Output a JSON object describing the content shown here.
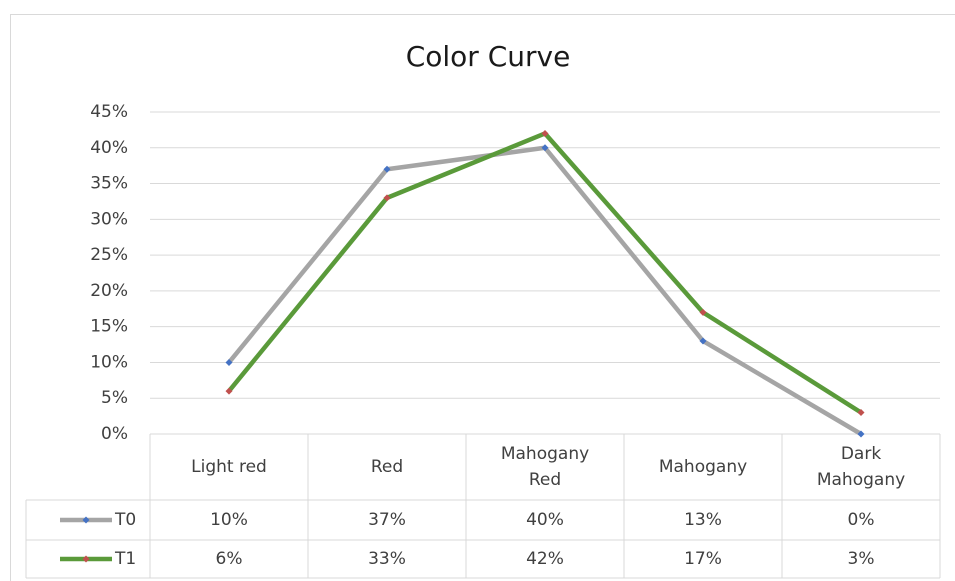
{
  "chart_data": {
    "type": "line",
    "title": "Color Curve",
    "categories": [
      "Light red",
      "Red",
      "Mahogany Red",
      "Mahogany",
      "Dark Mahogany"
    ],
    "series": [
      {
        "name": "T0",
        "color": "#a5a5a5",
        "marker_color": "#4472c4",
        "values": [
          10,
          37,
          40,
          13,
          0
        ],
        "value_labels": [
          "10%",
          "37%",
          "40%",
          "13%",
          "0%"
        ]
      },
      {
        "name": "T1",
        "color": "#5a9a3a",
        "marker_color": "#c0504d",
        "values": [
          6,
          33,
          42,
          17,
          3
        ],
        "value_labels": [
          "6%",
          "33%",
          "42%",
          "17%",
          "3%"
        ]
      }
    ],
    "ylim": [
      0,
      45
    ],
    "yticks": [
      {
        "value": 0,
        "label": "0%"
      },
      {
        "value": 5,
        "label": "5%"
      },
      {
        "value": 10,
        "label": "10%"
      },
      {
        "value": 15,
        "label": "15%"
      },
      {
        "value": 20,
        "label": "20%"
      },
      {
        "value": 25,
        "label": "25%"
      },
      {
        "value": 30,
        "label": "30%"
      },
      {
        "value": 35,
        "label": "35%"
      },
      {
        "value": 40,
        "label": "40%"
      },
      {
        "value": 45,
        "label": "45%"
      }
    ],
    "grid": true,
    "data_table": true
  }
}
